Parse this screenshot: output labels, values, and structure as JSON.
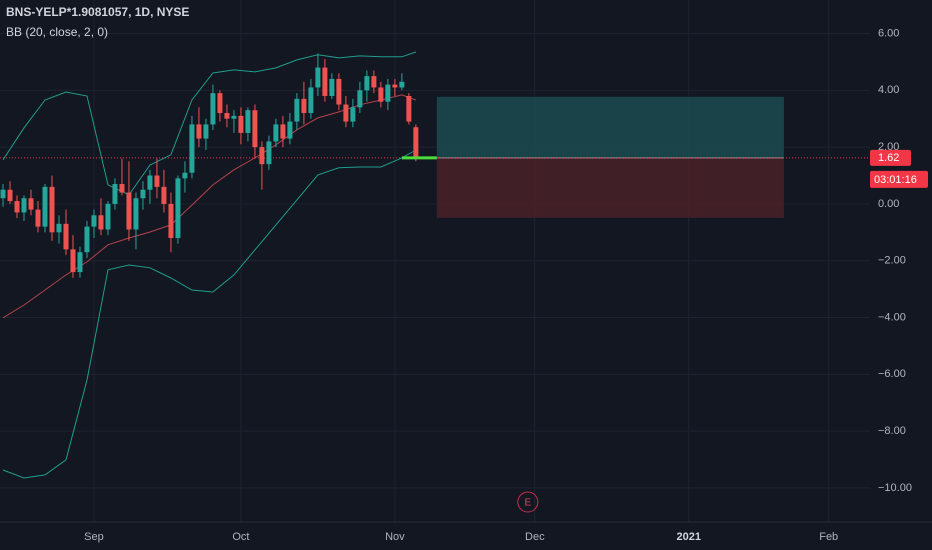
{
  "chart_data": {
    "type": "candlestick",
    "title": "BNS-YELP*1.9081057, 1D, NYSE",
    "indicator": "BB (20, close, 2, 0)",
    "up_color": "#26a69a",
    "down_color": "#ef5350",
    "x": [
      0,
      1,
      2,
      3,
      4,
      5,
      6,
      7,
      8,
      9,
      10,
      11,
      12,
      13,
      14,
      15,
      16,
      17,
      18,
      19,
      20,
      21,
      22,
      23,
      24,
      25,
      26,
      27,
      28,
      29,
      30,
      31,
      32,
      33,
      34,
      35,
      36,
      37,
      38,
      39,
      40,
      41,
      42,
      43,
      44,
      45,
      46,
      47,
      48,
      49,
      50,
      51,
      52,
      53,
      54,
      55,
      56,
      57,
      58,
      59
    ],
    "open": [
      0.2,
      0.5,
      0.1,
      -0.3,
      0.2,
      -0.2,
      -0.8,
      0.6,
      -1.0,
      -0.7,
      -1.6,
      -2.4,
      -1.7,
      -0.8,
      -0.4,
      -0.9,
      0.0,
      0.7,
      0.4,
      -0.9,
      0.2,
      0.5,
      1.0,
      0.6,
      0.0,
      -1.2,
      0.9,
      1.1,
      2.8,
      2.3,
      2.8,
      3.9,
      3.2,
      3.0,
      3.1,
      2.5,
      3.3,
      2.0,
      1.4,
      2.2,
      2.8,
      2.3,
      2.9,
      3.7,
      3.2,
      4.1,
      4.8,
      3.8,
      4.4,
      3.5,
      2.9,
      3.4,
      4.0,
      4.5,
      4.1,
      3.6,
      4.2,
      4.1,
      3.8,
      2.7
    ],
    "high": [
      0.7,
      0.8,
      0.3,
      0.3,
      0.5,
      0.1,
      0.7,
      1.0,
      -0.4,
      -0.2,
      -1.1,
      -1.5,
      -0.6,
      -0.2,
      0.2,
      0.1,
      0.9,
      1.6,
      1.5,
      0.4,
      0.8,
      1.2,
      1.6,
      1.2,
      0.4,
      1.0,
      1.5,
      3.1,
      3.4,
      3.0,
      4.2,
      4.0,
      3.5,
      3.3,
      3.4,
      3.4,
      3.5,
      2.2,
      2.4,
      3.0,
      3.1,
      3.2,
      3.9,
      4.3,
      4.4,
      5.3,
      5.1,
      4.6,
      4.6,
      3.8,
      3.7,
      4.3,
      4.7,
      4.7,
      4.3,
      4.4,
      4.4,
      4.6,
      3.9,
      2.8
    ],
    "low": [
      -0.1,
      0.0,
      -0.5,
      -0.6,
      -0.4,
      -1.0,
      -1.0,
      -1.3,
      -1.4,
      -1.8,
      -2.6,
      -2.6,
      -1.9,
      -1.2,
      -1.1,
      -1.1,
      -0.2,
      0.3,
      -1.3,
      -1.6,
      -0.2,
      0.0,
      0.2,
      -0.3,
      -1.7,
      -1.4,
      0.4,
      0.9,
      2.0,
      1.9,
      2.6,
      2.9,
      2.7,
      2.5,
      2.1,
      2.2,
      1.6,
      0.5,
      1.2,
      2.0,
      2.0,
      2.1,
      2.6,
      2.8,
      3.0,
      3.8,
      3.6,
      3.7,
      3.3,
      2.7,
      2.7,
      3.2,
      3.6,
      3.9,
      3.4,
      3.3,
      3.8,
      4.0,
      2.8,
      1.5
    ],
    "close": [
      0.5,
      0.1,
      -0.3,
      0.2,
      -0.2,
      -0.8,
      0.6,
      -1.0,
      -0.7,
      -1.6,
      -2.4,
      -1.7,
      -0.8,
      -0.4,
      -0.9,
      0.0,
      0.7,
      0.4,
      -0.9,
      0.2,
      0.5,
      1.0,
      0.6,
      0.0,
      -1.2,
      0.9,
      1.1,
      2.8,
      2.3,
      2.8,
      3.9,
      3.2,
      3.0,
      3.1,
      2.5,
      3.3,
      2.0,
      1.4,
      2.2,
      2.8,
      2.3,
      2.9,
      3.7,
      3.2,
      4.1,
      4.8,
      3.8,
      4.4,
      3.5,
      2.9,
      3.4,
      4.0,
      4.5,
      4.1,
      3.6,
      4.2,
      4.1,
      4.3,
      2.9,
      1.62
    ],
    "band_x": [
      0,
      3,
      6,
      9,
      12,
      15,
      18,
      21,
      24,
      27,
      30,
      33,
      36,
      39,
      42,
      45,
      48,
      51,
      54,
      57,
      59
    ],
    "bands": [
      {
        "color": "#1f9e8c",
        "values": [
          1.55,
          2.68,
          3.66,
          3.94,
          3.8,
          0.67,
          0.32,
          1.37,
          1.73,
          3.66,
          4.61,
          4.72,
          4.65,
          4.79,
          5.07,
          5.25,
          5.14,
          5.21,
          5.18,
          5.18,
          5.35
        ]
      },
      {
        "color": "#b5434a",
        "values": [
          -4.01,
          -3.56,
          -3.03,
          -2.5,
          -2.04,
          -1.44,
          -1.2,
          -0.99,
          -0.74,
          -0.04,
          0.67,
          1.2,
          1.62,
          2.08,
          2.61,
          3.03,
          3.24,
          3.49,
          3.66,
          3.84,
          3.66
        ]
      },
      {
        "color": "#1f9e8c",
        "values": [
          -9.37,
          -9.65,
          -9.54,
          -9.01,
          -6.2,
          -2.32,
          -2.15,
          -2.25,
          -2.61,
          -3.03,
          -3.1,
          -2.5,
          -1.62,
          -0.74,
          0.14,
          1.02,
          1.27,
          1.3,
          1.3,
          1.62,
          1.9
        ]
      }
    ],
    "position": {
      "x": [
        62,
        111.6
      ],
      "entry": 1.62,
      "target": 3.77,
      "stop": -0.49,
      "target_color": "#1b4b4f",
      "stop_color": "#4a2127"
    },
    "last_price": {
      "value": 1.62,
      "label": "1.62",
      "countdown": "03:01:16",
      "color": "#f23645"
    },
    "earnings": {
      "x": 75,
      "label": "E"
    },
    "xlim": [
      -0.43,
      123.9
    ],
    "xticks": [
      {
        "value": 13,
        "label": "Sep"
      },
      {
        "value": 34,
        "label": "Oct"
      },
      {
        "value": 56,
        "label": "Nov"
      },
      {
        "value": 76,
        "label": "Dec"
      },
      {
        "value": 98,
        "label": "2021"
      },
      {
        "value": 118,
        "label": "Feb"
      }
    ],
    "ylim": [
      -11.2,
      7.18
    ],
    "yticks": [
      {
        "value": 6,
        "label": "6.00"
      },
      {
        "value": 4,
        "label": "4.00"
      },
      {
        "value": 2,
        "label": "2.00"
      },
      {
        "value": 0,
        "label": "0.00"
      },
      {
        "value": -2,
        "label": "−2.00"
      },
      {
        "value": -4,
        "label": "−4.00"
      },
      {
        "value": -6,
        "label": "−6.00"
      },
      {
        "value": -8,
        "label": "−8.00"
      },
      {
        "value": -10,
        "label": "−10.00"
      }
    ],
    "grid": true
  }
}
